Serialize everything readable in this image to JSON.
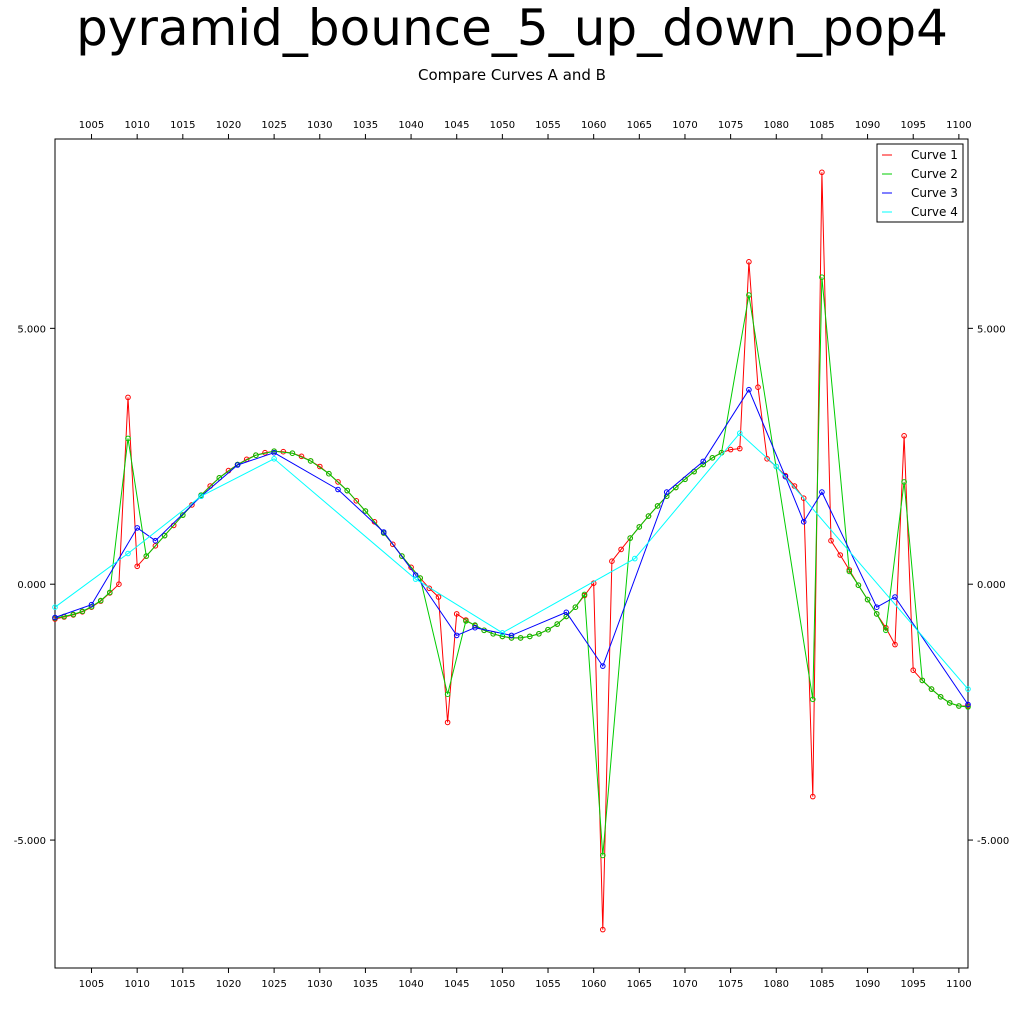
{
  "chart_data": {
    "type": "line",
    "title": "pyramid_bounce_5_up_down_pop4",
    "subtitle": "Compare Curves A and B",
    "xlabel": "",
    "ylabel": "",
    "xlim": [
      1001,
      1101
    ],
    "ylim": [
      -7.5,
      8.7
    ],
    "x_ticks": [
      1005,
      1010,
      1015,
      1020,
      1025,
      1030,
      1035,
      1040,
      1045,
      1050,
      1055,
      1060,
      1065,
      1070,
      1075,
      1080,
      1085,
      1090,
      1095,
      1100
    ],
    "y_ticks": [
      5,
      0,
      -5
    ],
    "y_tick_labels": [
      "5.000",
      "0.000",
      "-5.000"
    ],
    "grid": false,
    "legend_position": "top-right",
    "series": [
      {
        "name": "Curve 1",
        "color": "#ff0000",
        "points": [
          [
            1001,
            -0.68
          ],
          [
            1002,
            -0.64
          ],
          [
            1003,
            -0.6
          ],
          [
            1004,
            -0.54
          ],
          [
            1005,
            -0.45
          ],
          [
            1006,
            -0.33
          ],
          [
            1007,
            -0.17
          ],
          [
            1008,
            0.0
          ],
          [
            1009,
            3.65
          ],
          [
            1010,
            0.35
          ],
          [
            1011,
            0.55
          ],
          [
            1012,
            0.75
          ],
          [
            1013,
            0.95
          ],
          [
            1014,
            1.15
          ],
          [
            1015,
            1.35
          ],
          [
            1016,
            1.55
          ],
          [
            1017,
            1.74
          ],
          [
            1018,
            1.92
          ],
          [
            1019,
            2.08
          ],
          [
            1020,
            2.22
          ],
          [
            1021,
            2.34
          ],
          [
            1022,
            2.44
          ],
          [
            1023,
            2.52
          ],
          [
            1024,
            2.57
          ],
          [
            1025,
            2.6
          ],
          [
            1026,
            2.59
          ],
          [
            1027,
            2.56
          ],
          [
            1028,
            2.5
          ],
          [
            1029,
            2.41
          ],
          [
            1030,
            2.3
          ],
          [
            1031,
            2.16
          ],
          [
            1032,
            2.0
          ],
          [
            1033,
            1.83
          ],
          [
            1034,
            1.63
          ],
          [
            1035,
            1.43
          ],
          [
            1036,
            1.22
          ],
          [
            1037,
            1.0
          ],
          [
            1038,
            0.78
          ],
          [
            1039,
            0.55
          ],
          [
            1040,
            0.33
          ],
          [
            1041,
            0.12
          ],
          [
            1042,
            -0.08
          ],
          [
            1043,
            -0.25
          ],
          [
            1044,
            -2.7
          ],
          [
            1045,
            -0.58
          ],
          [
            1046,
            -0.7
          ],
          [
            1047,
            -0.81
          ],
          [
            1048,
            -0.9
          ],
          [
            1049,
            -0.97
          ],
          [
            1050,
            -1.02
          ],
          [
            1051,
            -1.05
          ],
          [
            1052,
            -1.05
          ],
          [
            1053,
            -1.02
          ],
          [
            1054,
            -0.97
          ],
          [
            1055,
            -0.89
          ],
          [
            1056,
            -0.78
          ],
          [
            1057,
            -0.63
          ],
          [
            1058,
            -0.45
          ],
          [
            1059,
            -0.22
          ],
          [
            1060,
            0.02
          ],
          [
            1061,
            -6.75
          ],
          [
            1062,
            0.45
          ],
          [
            1063,
            0.68
          ],
          [
            1064,
            0.9
          ],
          [
            1065,
            1.12
          ],
          [
            1066,
            1.33
          ],
          [
            1067,
            1.53
          ],
          [
            1068,
            1.72
          ],
          [
            1069,
            1.89
          ],
          [
            1070,
            2.05
          ],
          [
            1071,
            2.2
          ],
          [
            1072,
            2.34
          ],
          [
            1073,
            2.47
          ],
          [
            1074,
            2.57
          ],
          [
            1075,
            2.63
          ],
          [
            1076,
            2.65
          ],
          [
            1077,
            6.3
          ],
          [
            1078,
            3.85
          ],
          [
            1079,
            2.45
          ],
          [
            1080,
            2.3
          ],
          [
            1081,
            2.12
          ],
          [
            1082,
            1.92
          ],
          [
            1083,
            1.68
          ],
          [
            1084,
            -4.15
          ],
          [
            1085,
            8.05
          ],
          [
            1086,
            0.85
          ],
          [
            1087,
            0.57
          ],
          [
            1088,
            0.28
          ],
          [
            1089,
            -0.02
          ],
          [
            1090,
            -0.3
          ],
          [
            1091,
            -0.58
          ],
          [
            1092,
            -0.85
          ],
          [
            1093,
            -1.18
          ],
          [
            1094,
            2.9
          ],
          [
            1095,
            -1.68
          ],
          [
            1096,
            -1.88
          ],
          [
            1097,
            -2.05
          ],
          [
            1098,
            -2.2
          ],
          [
            1099,
            -2.32
          ],
          [
            1100,
            -2.38
          ],
          [
            1101,
            -2.38
          ]
        ]
      },
      {
        "name": "Curve 2",
        "color": "#00cc00",
        "points": [
          [
            1001,
            -0.66
          ],
          [
            1002,
            -0.63
          ],
          [
            1003,
            -0.59
          ],
          [
            1004,
            -0.53
          ],
          [
            1005,
            -0.44
          ],
          [
            1006,
            -0.32
          ],
          [
            1007,
            -0.16
          ],
          [
            1009,
            2.85
          ],
          [
            1011,
            0.55
          ],
          [
            1013,
            0.95
          ],
          [
            1015,
            1.35
          ],
          [
            1017,
            1.74
          ],
          [
            1019,
            2.08
          ],
          [
            1021,
            2.34
          ],
          [
            1023,
            2.52
          ],
          [
            1025,
            2.6
          ],
          [
            1027,
            2.56
          ],
          [
            1029,
            2.41
          ],
          [
            1031,
            2.16
          ],
          [
            1033,
            1.83
          ],
          [
            1035,
            1.43
          ],
          [
            1037,
            1.0
          ],
          [
            1039,
            0.55
          ],
          [
            1041,
            0.12
          ],
          [
            1044,
            -2.15
          ],
          [
            1046,
            -0.72
          ],
          [
            1047,
            -0.8
          ],
          [
            1048,
            -0.9
          ],
          [
            1049,
            -0.97
          ],
          [
            1050,
            -1.02
          ],
          [
            1051,
            -1.05
          ],
          [
            1052,
            -1.05
          ],
          [
            1053,
            -1.02
          ],
          [
            1054,
            -0.97
          ],
          [
            1055,
            -0.89
          ],
          [
            1056,
            -0.78
          ],
          [
            1057,
            -0.63
          ],
          [
            1058,
            -0.45
          ],
          [
            1059,
            -0.2
          ],
          [
            1061,
            -5.3
          ],
          [
            1064,
            0.9
          ],
          [
            1065,
            1.12
          ],
          [
            1066,
            1.33
          ],
          [
            1067,
            1.53
          ],
          [
            1068,
            1.72
          ],
          [
            1069,
            1.89
          ],
          [
            1070,
            2.05
          ],
          [
            1071,
            2.2
          ],
          [
            1072,
            2.34
          ],
          [
            1073,
            2.47
          ],
          [
            1074,
            2.57
          ],
          [
            1077,
            5.65
          ],
          [
            1084,
            -2.25
          ],
          [
            1085,
            6.0
          ],
          [
            1088,
            0.25
          ],
          [
            1089,
            -0.02
          ],
          [
            1090,
            -0.3
          ],
          [
            1091,
            -0.58
          ],
          [
            1092,
            -0.9
          ],
          [
            1094,
            2.0
          ],
          [
            1096,
            -1.88
          ],
          [
            1097,
            -2.05
          ],
          [
            1098,
            -2.2
          ],
          [
            1099,
            -2.32
          ],
          [
            1100,
            -2.38
          ],
          [
            1101,
            -2.4
          ]
        ]
      },
      {
        "name": "Curve 3",
        "color": "#0000ff",
        "points": [
          [
            1001,
            -0.65
          ],
          [
            1005,
            -0.4
          ],
          [
            1010,
            1.1
          ],
          [
            1012,
            0.85
          ],
          [
            1017,
            1.72
          ],
          [
            1021,
            2.33
          ],
          [
            1025,
            2.57
          ],
          [
            1032,
            1.85
          ],
          [
            1037,
            1.02
          ],
          [
            1040.5,
            0.18
          ],
          [
            1045,
            -1.0
          ],
          [
            1047,
            -0.85
          ],
          [
            1051,
            -1.0
          ],
          [
            1057,
            -0.55
          ],
          [
            1061,
            -1.6
          ],
          [
            1068,
            1.8
          ],
          [
            1072,
            2.4
          ],
          [
            1077,
            3.8
          ],
          [
            1081,
            2.1
          ],
          [
            1083,
            1.22
          ],
          [
            1085,
            1.8
          ],
          [
            1091,
            -0.45
          ],
          [
            1093,
            -0.25
          ],
          [
            1101,
            -2.35
          ]
        ]
      },
      {
        "name": "Curve 4",
        "color": "#00ffff",
        "points": [
          [
            1001,
            -0.45
          ],
          [
            1009,
            0.6
          ],
          [
            1017,
            1.72
          ],
          [
            1025,
            2.45
          ],
          [
            1040.5,
            0.1
          ],
          [
            1050,
            -0.95
          ],
          [
            1064.5,
            0.5
          ],
          [
            1076,
            2.95
          ],
          [
            1080,
            2.3
          ],
          [
            1101,
            -2.05
          ]
        ]
      }
    ]
  }
}
